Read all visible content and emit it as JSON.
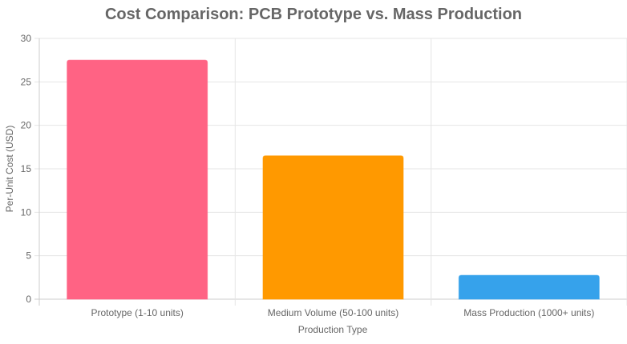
{
  "chart_data": {
    "type": "bar",
    "title": "Cost Comparison: PCB Prototype vs. Mass Production",
    "xlabel": "Production Type",
    "ylabel": "Per-Unit Cost (USD)",
    "categories": [
      "Prototype (1-10 units)",
      "Medium Volume (50-100 units)",
      "Mass Production (1000+ units)"
    ],
    "values": [
      27.5,
      16.5,
      2.75
    ],
    "colors": [
      "#ff6384",
      "#ff9900",
      "#36a2eb"
    ],
    "ylim": [
      0,
      30
    ],
    "yticks": [
      "0",
      "5",
      "10",
      "15",
      "20",
      "25",
      "30"
    ],
    "grid": true,
    "legend": "none"
  }
}
